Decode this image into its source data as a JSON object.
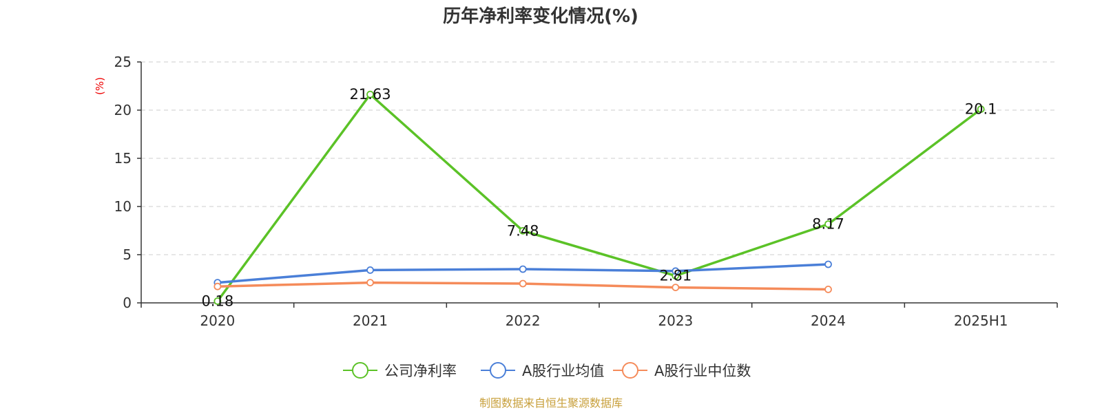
{
  "chart_data": {
    "type": "line",
    "title": "历年净利率变化情况(%)",
    "ylabel": "(%)",
    "categories": [
      "2020",
      "2021",
      "2022",
      "2023",
      "2024",
      "2025H1"
    ],
    "ylim": [
      0,
      25
    ],
    "yticks": [
      0,
      5,
      10,
      15,
      20,
      25
    ],
    "grid": true,
    "legend_position": "bottom",
    "series": [
      {
        "name": "公司净利率",
        "color": "#5bc227",
        "values": [
          0.18,
          21.63,
          7.48,
          2.81,
          8.17,
          20.1
        ],
        "labels": [
          "0.18",
          "21.63",
          "7.48",
          "2.81",
          "8.17",
          "20.1"
        ],
        "show_labels": true
      },
      {
        "name": "A股行业均值",
        "color": "#4a7fd8",
        "values": [
          2.1,
          3.4,
          3.5,
          3.3,
          4.0,
          null
        ],
        "show_labels": false
      },
      {
        "name": "A股行业中位数",
        "color": "#f58b5a",
        "values": [
          1.7,
          2.1,
          2.0,
          1.6,
          1.4,
          null
        ],
        "show_labels": false
      }
    ]
  },
  "source_note": "制图数据来自恒生聚源数据库"
}
